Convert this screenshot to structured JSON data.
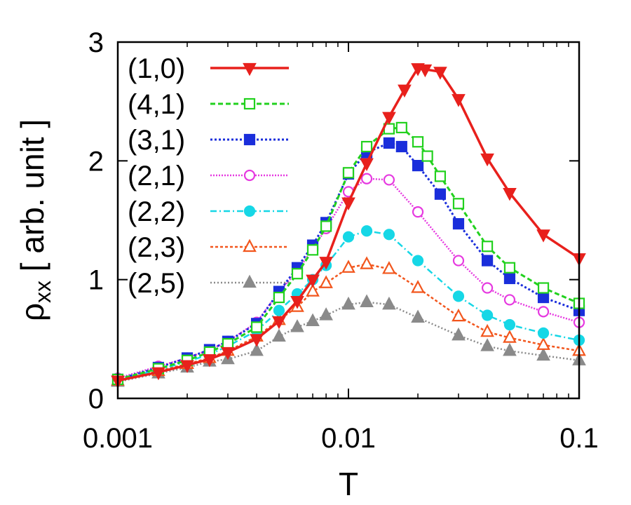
{
  "chart_data": {
    "type": "line",
    "xscale": "log",
    "xlim": [
      0.001,
      0.1
    ],
    "ylim": [
      0,
      3
    ],
    "xlabel": "T",
    "ylabel_main": "ρ",
    "ylabel_sub": "xx",
    "ylabel_rest": " [ arb. unit ]",
    "xticks": [
      {
        "value": 0.001,
        "label": "0.001"
      },
      {
        "value": 0.01,
        "label": "0.01"
      },
      {
        "value": 0.1,
        "label": "0.1"
      }
    ],
    "yticks": [
      {
        "value": 0,
        "label": "0"
      },
      {
        "value": 1,
        "label": "1"
      },
      {
        "value": 2,
        "label": "2"
      },
      {
        "value": 3,
        "label": "3"
      }
    ],
    "series": [
      {
        "name": "(1,0)",
        "color": "#e8201c",
        "marker": "triangle-down",
        "filled": true,
        "dash": "",
        "width": 3.5,
        "x": [
          0.001,
          0.0015,
          0.002,
          0.0025,
          0.003,
          0.004,
          0.005,
          0.006,
          0.007,
          0.008,
          0.01,
          0.012,
          0.015,
          0.0175,
          0.02,
          0.0215,
          0.025,
          0.03,
          0.04,
          0.05,
          0.07,
          0.1
        ],
        "y": [
          0.15,
          0.22,
          0.28,
          0.33,
          0.39,
          0.5,
          0.65,
          0.82,
          1.0,
          1.15,
          1.65,
          1.98,
          2.37,
          2.6,
          2.78,
          2.77,
          2.75,
          2.52,
          2.02,
          1.73,
          1.38,
          1.18
        ]
      },
      {
        "name": "(4,1)",
        "color": "#22d11e",
        "marker": "square",
        "filled": false,
        "dash": "7,4",
        "width": 3,
        "x": [
          0.001,
          0.0015,
          0.002,
          0.0025,
          0.003,
          0.004,
          0.005,
          0.006,
          0.007,
          0.008,
          0.01,
          0.012,
          0.015,
          0.017,
          0.02,
          0.022,
          0.025,
          0.03,
          0.04,
          0.05,
          0.07,
          0.1
        ],
        "y": [
          0.16,
          0.25,
          0.32,
          0.39,
          0.46,
          0.6,
          0.85,
          1.05,
          1.25,
          1.45,
          1.9,
          2.12,
          2.27,
          2.28,
          2.16,
          2.04,
          1.87,
          1.64,
          1.28,
          1.1,
          0.93,
          0.8
        ]
      },
      {
        "name": "(3,1)",
        "color": "#1a2edb",
        "marker": "square",
        "filled": true,
        "dash": "3,3",
        "width": 3,
        "x": [
          0.001,
          0.0015,
          0.002,
          0.0025,
          0.003,
          0.004,
          0.005,
          0.006,
          0.007,
          0.008,
          0.01,
          0.012,
          0.015,
          0.017,
          0.02,
          0.025,
          0.03,
          0.04,
          0.05,
          0.07,
          0.1
        ],
        "y": [
          0.16,
          0.26,
          0.34,
          0.41,
          0.48,
          0.63,
          0.9,
          1.1,
          1.29,
          1.48,
          1.89,
          2.07,
          2.15,
          2.12,
          1.96,
          1.72,
          1.47,
          1.16,
          1.01,
          0.85,
          0.74
        ]
      },
      {
        "name": "(2,1)",
        "color": "#e639e0",
        "marker": "circle-open",
        "filled": false,
        "dash": "2,2",
        "width": 2.5,
        "x": [
          0.001,
          0.0015,
          0.002,
          0.0025,
          0.003,
          0.004,
          0.005,
          0.006,
          0.007,
          0.008,
          0.01,
          0.012,
          0.015,
          0.02,
          0.03,
          0.04,
          0.05,
          0.07,
          0.1
        ],
        "y": [
          0.17,
          0.27,
          0.34,
          0.41,
          0.48,
          0.64,
          0.9,
          1.07,
          1.26,
          1.43,
          1.74,
          1.85,
          1.84,
          1.57,
          1.16,
          0.93,
          0.83,
          0.73,
          0.64
        ]
      },
      {
        "name": "(2,2)",
        "color": "#16d7e6",
        "marker": "circle",
        "filled": true,
        "dash": "9,4,2,4",
        "width": 2.5,
        "x": [
          0.001,
          0.0015,
          0.002,
          0.0025,
          0.003,
          0.004,
          0.005,
          0.006,
          0.007,
          0.008,
          0.01,
          0.012,
          0.015,
          0.02,
          0.03,
          0.04,
          0.05,
          0.07,
          0.1
        ],
        "y": [
          0.16,
          0.24,
          0.31,
          0.37,
          0.44,
          0.57,
          0.74,
          0.88,
          1.0,
          1.12,
          1.36,
          1.41,
          1.38,
          1.16,
          0.86,
          0.7,
          0.62,
          0.55,
          0.49
        ]
      },
      {
        "name": "(2,3)",
        "color": "#f2561d",
        "marker": "triangle-up-open",
        "filled": false,
        "dash": "4,3",
        "width": 2.5,
        "x": [
          0.001,
          0.0015,
          0.002,
          0.0025,
          0.003,
          0.004,
          0.005,
          0.006,
          0.007,
          0.008,
          0.01,
          0.012,
          0.015,
          0.02,
          0.03,
          0.04,
          0.05,
          0.07,
          0.1
        ],
        "y": [
          0.15,
          0.23,
          0.29,
          0.34,
          0.4,
          0.52,
          0.66,
          0.77,
          0.9,
          0.97,
          1.1,
          1.13,
          1.09,
          0.93,
          0.69,
          0.56,
          0.51,
          0.45,
          0.4
        ]
      },
      {
        "name": "(2,5)",
        "color": "#8a8a8a",
        "marker": "triangle-up",
        "filled": true,
        "dash": "2,3",
        "width": 2.5,
        "x": [
          0.001,
          0.0015,
          0.002,
          0.0025,
          0.003,
          0.004,
          0.005,
          0.006,
          0.007,
          0.008,
          0.01,
          0.012,
          0.015,
          0.02,
          0.03,
          0.04,
          0.05,
          0.07,
          0.1
        ],
        "y": [
          0.14,
          0.21,
          0.26,
          0.31,
          0.33,
          0.4,
          0.52,
          0.6,
          0.65,
          0.7,
          0.79,
          0.81,
          0.79,
          0.68,
          0.53,
          0.44,
          0.4,
          0.36,
          0.32
        ]
      }
    ]
  }
}
